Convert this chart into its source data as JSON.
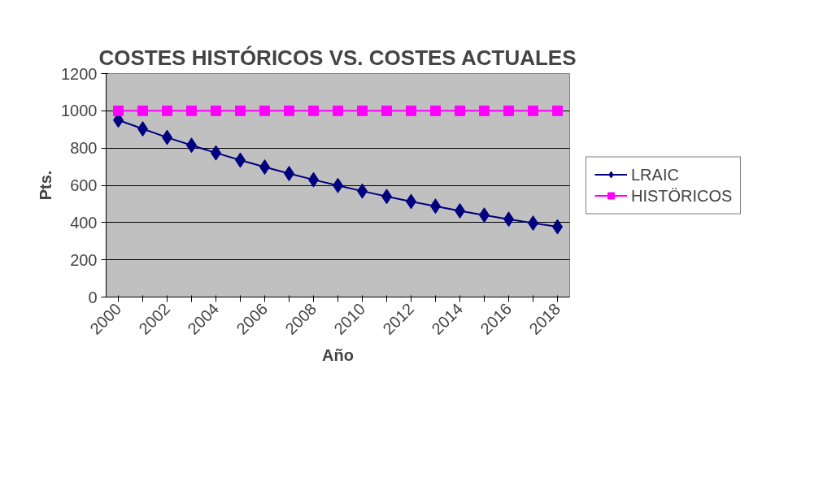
{
  "chart_data": {
    "type": "line",
    "title": "COSTES HISTÓRICOS VS. COSTES ACTUALES",
    "xlabel": "Año",
    "ylabel": "Pts.",
    "categories": [
      "2000",
      null,
      "2002",
      null,
      "2004",
      null,
      "2006",
      null,
      "2008",
      null,
      "2010",
      null,
      "2012",
      null,
      "2014",
      null,
      "2016",
      null,
      "2018"
    ],
    "series": [
      {
        "name": "LRAIC",
        "color": "#000080",
        "marker": "diamond",
        "values": [
          950,
          903,
          857,
          815,
          774,
          735,
          698,
          663,
          630,
          599,
          569,
          540,
          513,
          488,
          463,
          440,
          418,
          397,
          377
        ]
      },
      {
        "name": "HISTÖRICOS",
        "color": "#ff00ff",
        "marker": "square",
        "values": [
          1000,
          1000,
          1000,
          1000,
          1000,
          1000,
          1000,
          1000,
          1000,
          1000,
          1000,
          1000,
          1000,
          1000,
          1000,
          1000,
          1000,
          1000,
          1000
        ]
      }
    ],
    "ylim": [
      0,
      1200
    ],
    "yticks": [
      0,
      200,
      400,
      600,
      800,
      1000,
      1200
    ],
    "grid": "y",
    "legend": "right",
    "line_style": "solid"
  }
}
